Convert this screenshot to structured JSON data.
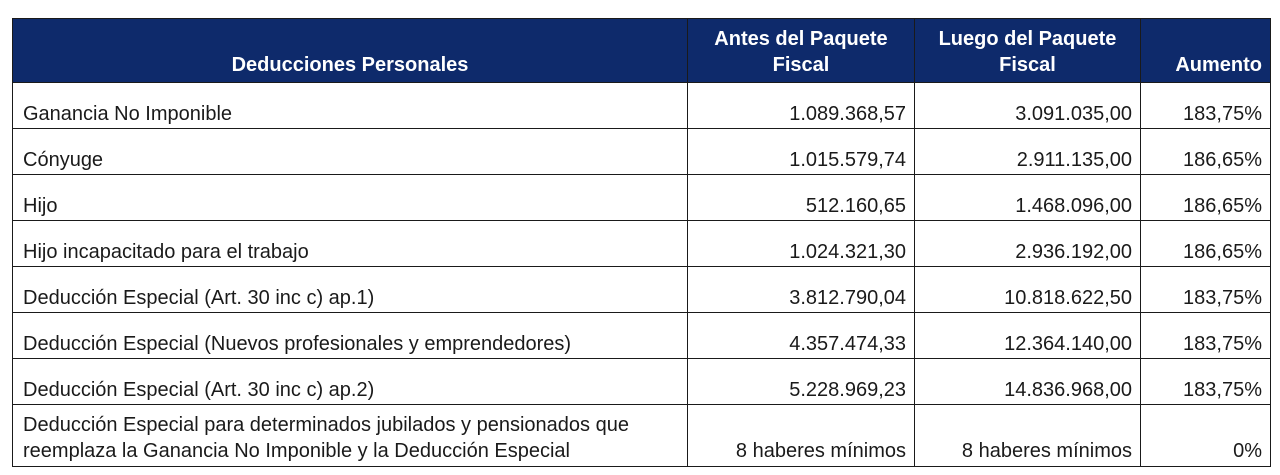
{
  "table": {
    "headers": [
      "Deducciones Personales",
      "Antes del Paquete Fiscal",
      "Luego del Paquete Fiscal",
      "Aumento"
    ],
    "rows": [
      [
        "Ganancia No Imponible",
        "1.089.368,57",
        "3.091.035,00",
        "183,75%"
      ],
      [
        "Cónyuge",
        "1.015.579,74",
        "2.911.135,00",
        "186,65%"
      ],
      [
        "Hijo",
        "512.160,65",
        "1.468.096,00",
        "186,65%"
      ],
      [
        "Hijo incapacitado para el trabajo",
        "1.024.321,30",
        "2.936.192,00",
        "186,65%"
      ],
      [
        "Deducción Especial (Art. 30 inc c) ap.1)",
        "3.812.790,04",
        "10.818.622,50",
        "183,75%"
      ],
      [
        "Deducción Especial (Nuevos profesionales y emprendedores)",
        "4.357.474,33",
        "12.364.140,00",
        "183,75%"
      ],
      [
        "Deducción Especial (Art. 30 inc c) ap.2)",
        "5.228.969,23",
        "14.836.968,00",
        "183,75%"
      ],
      [
        "Deducción Especial para determinados jubilados y pensionados que reemplaza la Ganancia No Imponible y la Deducción Especial",
        "8 haberes mínimos",
        "8 haberes mínimos",
        "0%"
      ]
    ]
  }
}
